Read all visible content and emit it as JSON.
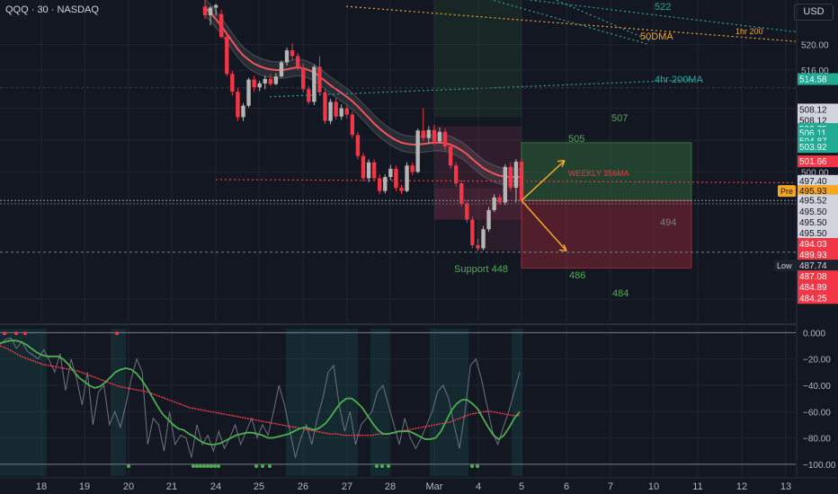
{
  "header": {
    "symbol": "QQQ · 30 · NASDAQ",
    "currency": "USD"
  },
  "colors": {
    "background": "#131722",
    "grid": "#1f2430",
    "axis_text": "#b2b5be",
    "bull": "#b5b5b5",
    "bear": "#f23645",
    "ema_band": "#f0555d",
    "green": "#4caf50",
    "red": "#f23645",
    "orange": "#f5a623",
    "teal_dotted": "#26a69a",
    "support_dotted": "#787b86",
    "zero_line": "#787b86"
  },
  "chart_data": [
    {
      "type": "line",
      "title": "",
      "x_ticks": [
        "18",
        "19",
        "20",
        "21",
        "24",
        "25",
        "26",
        "27",
        "28",
        "Mar",
        "4",
        "5",
        "6",
        "7",
        "10",
        "11",
        "12",
        "13"
      ],
      "price_ticks": [
        520.0,
        516.0,
        500.0,
        480.0
      ],
      "ylim": [
        476.5,
        527
      ],
      "price_labels": [
        {
          "text": "514.58",
          "y": 514.58,
          "bg": "#22ab94",
          "fg": "#ffffff"
        },
        {
          "text": "508.12",
          "y": 509.8,
          "bg": "#d1d4dc",
          "fg": "#131722"
        },
        {
          "text": "508.12",
          "y": 508.12,
          "bg": "#d1d4dc",
          "fg": "#131722"
        },
        {
          "text": "506.75",
          "y": 506.75,
          "bg": "#22ab94",
          "fg": "#ffffff"
        },
        {
          "text": "506.11",
          "y": 506.11,
          "bg": "#22ab94",
          "fg": "#ffffff"
        },
        {
          "text": "504.87",
          "y": 504.87,
          "bg": "#22ab94",
          "fg": "#ffffff"
        },
        {
          "text": "503.92",
          "y": 503.92,
          "bg": "#22ab94",
          "fg": "#ffffff"
        },
        {
          "text": "501.66",
          "y": 501.66,
          "bg": "#f23645",
          "fg": "#ffffff"
        },
        {
          "text": "497.40",
          "y": 498.6,
          "bg": "#d1d4dc",
          "fg": "#131722"
        },
        {
          "text": "495.93",
          "y": 497.0,
          "bg": "#f5a623",
          "fg": "#131722",
          "prefix": "Pre"
        },
        {
          "text": "495.52",
          "y": 495.52,
          "bg": "#d1d4dc",
          "fg": "#131722"
        },
        {
          "text": "495.50",
          "y": 493.8,
          "bg": "#d1d4dc",
          "fg": "#131722"
        },
        {
          "text": "495.50",
          "y": 492.1,
          "bg": "#d1d4dc",
          "fg": "#131722"
        },
        {
          "text": "495.50",
          "y": 490.4,
          "bg": "#d1d4dc",
          "fg": "#131722"
        },
        {
          "text": "494.03",
          "y": 488.7,
          "bg": "#f23645",
          "fg": "#ffffff"
        },
        {
          "text": "489.93",
          "y": 487.0,
          "bg": "#f23645",
          "fg": "#ffffff"
        },
        {
          "text": "487.74",
          "y": 485.3,
          "bg": "#1e222d",
          "fg": "#d1d4dc",
          "prefix": "Low"
        },
        {
          "text": "487.08",
          "y": 483.6,
          "bg": "#f23645",
          "fg": "#ffffff"
        },
        {
          "text": "484.89",
          "y": 481.9,
          "bg": "#f23645",
          "fg": "#ffffff"
        },
        {
          "text": "484.25",
          "y": 480.2,
          "bg": "#f23645",
          "fg": "#ffffff"
        }
      ],
      "candles": [
        [
          526.0,
          527.0,
          524.0,
          524.6
        ],
        [
          524.6,
          526.0,
          523.0,
          525.8
        ],
        [
          525.8,
          526.4,
          524.5,
          526.2
        ],
        [
          524.8,
          525.5,
          521.0,
          521.2
        ],
        [
          521.2,
          521.8,
          515.0,
          515.4
        ],
        [
          515.4,
          515.9,
          512.0,
          512.6
        ],
        [
          512.6,
          513.2,
          508.0,
          508.6
        ],
        [
          508.6,
          510.8,
          508.0,
          510.4
        ],
        [
          510.4,
          514.8,
          510.1,
          514.5
        ],
        [
          514.5,
          515.1,
          512.6,
          513.3
        ],
        [
          513.3,
          514.3,
          512.7,
          513.9
        ],
        [
          513.9,
          515.1,
          513.0,
          514.6
        ],
        [
          514.6,
          515.4,
          513.5,
          513.8
        ],
        [
          513.8,
          515.5,
          513.6,
          515.0
        ],
        [
          515.0,
          517.5,
          514.8,
          517.2
        ],
        [
          517.2,
          519.5,
          516.7,
          519.1
        ],
        [
          519.1,
          520.2,
          517.5,
          518.2
        ],
        [
          518.2,
          518.7,
          516.0,
          516.4
        ],
        [
          516.4,
          517.0,
          512.5,
          513.0
        ],
        [
          513.0,
          513.5,
          510.6,
          511.0
        ],
        [
          511.0,
          516.8,
          510.5,
          516.5
        ],
        [
          516.5,
          518.2,
          512.0,
          512.5
        ],
        [
          512.5,
          513.0,
          507.5,
          508.0
        ],
        [
          508.0,
          511.5,
          507.5,
          511.0
        ],
        [
          511.0,
          511.6,
          508.2,
          508.7
        ],
        [
          508.7,
          510.6,
          508.2,
          510.0
        ],
        [
          510.0,
          510.6,
          508.4,
          509.0
        ],
        [
          509.0,
          509.5,
          505.3,
          505.8
        ],
        [
          505.8,
          506.3,
          502.0,
          502.5
        ],
        [
          502.5,
          503.0,
          498.5,
          499.0
        ],
        [
          499.0,
          502.0,
          498.4,
          501.5
        ],
        [
          501.5,
          502.0,
          498.5,
          499.0
        ],
        [
          499.0,
          499.6,
          496.5,
          497.0
        ],
        [
          497.0,
          499.6,
          496.6,
          499.2
        ],
        [
          499.2,
          501.1,
          498.7,
          500.5
        ],
        [
          500.5,
          501.0,
          497.0,
          497.5
        ],
        [
          497.5,
          498.0,
          496.5,
          497.0
        ],
        [
          497.0,
          501.5,
          496.8,
          501.0
        ],
        [
          501.0,
          501.5,
          499.5,
          500.0
        ],
        [
          500.0,
          506.8,
          499.8,
          506.5
        ],
        [
          506.5,
          510.0,
          504.8,
          505.3
        ],
        [
          505.3,
          507.2,
          504.4,
          506.6
        ],
        [
          506.6,
          507.4,
          504.2,
          504.8
        ],
        [
          504.8,
          507.0,
          504.5,
          506.3
        ],
        [
          506.3,
          506.8,
          503.5,
          504.0
        ],
        [
          504.0,
          504.5,
          500.5,
          501.0
        ],
        [
          501.0,
          501.5,
          497.7,
          498.2
        ],
        [
          498.2,
          498.7,
          494.5,
          495.0
        ],
        [
          495.0,
          495.5,
          492.0,
          492.5
        ],
        [
          492.5,
          493.0,
          488.0,
          488.5
        ],
        [
          488.5,
          489.5,
          487.6,
          488.0
        ],
        [
          488.0,
          491.5,
          487.7,
          491.0
        ],
        [
          491.0,
          494.5,
          490.6,
          494.0
        ],
        [
          494.0,
          496.5,
          493.7,
          496.0
        ],
        [
          496.0,
          496.5,
          494.8,
          495.2
        ],
        [
          495.2,
          501.2,
          494.8,
          500.8
        ],
        [
          500.8,
          501.5,
          497.0,
          497.5
        ],
        [
          497.5,
          502.0,
          495.2,
          501.6
        ],
        [
          501.6,
          502.1,
          495.1,
          495.5
        ]
      ],
      "ema_band": [
        525.8,
        525.0,
        524.0,
        522.9,
        521.7,
        520.5,
        519.3,
        518.3,
        517.6,
        517.0,
        516.6,
        516.3,
        516.1,
        516.0,
        516.0,
        516.1,
        516.3,
        516.4,
        516.3,
        516.0,
        515.6,
        515.0,
        514.3,
        513.6,
        513.0,
        512.4,
        511.8,
        511.1,
        510.3,
        509.4,
        508.5,
        507.6,
        506.8,
        506.1,
        505.5,
        505.0,
        504.6,
        504.4,
        504.3,
        504.3,
        504.4,
        504.5,
        504.6,
        504.6,
        504.5,
        504.3,
        503.9,
        503.4,
        502.8,
        502.0,
        501.3,
        500.6,
        500.1,
        499.7,
        499.4,
        499.3,
        499.2,
        499.2,
        499.2
      ],
      "levels": [
        {
          "label": "522",
          "value": 522,
          "color": "#26a69a"
        },
        {
          "label": "50DMA",
          "value": 519.6,
          "color": "#f5a623"
        },
        {
          "label": "1hr 200",
          "value": 520.8,
          "color": "#f5a623"
        },
        {
          "label": "4hr 200MA",
          "value": 513.3,
          "color": "#26a69a"
        },
        {
          "label": "WEEKLY 356MA",
          "value": 498.1,
          "color": "#f23645"
        },
        {
          "label": "Support 448",
          "value": 488.2,
          "color": "#4caf50"
        },
        {
          "label": "507",
          "value": 503.9,
          "color": "#4caf50"
        },
        {
          "label": "505",
          "value": 501.3,
          "color": "#4caf50"
        },
        {
          "label": "494",
          "value": 494.1,
          "color": "#7f7f7f"
        },
        {
          "label": "486",
          "value": 487.8,
          "color": "#4caf50"
        },
        {
          "label": "484",
          "value": 485.7,
          "color": "#4caf50"
        }
      ]
    },
    {
      "type": "line",
      "title": "",
      "ticks": [
        "0.000",
        "−20.00",
        "−40.00",
        "−60.00",
        "−80.00",
        "−100.00"
      ],
      "tick_values": [
        0,
        -20,
        -40,
        -60,
        -80,
        -100
      ],
      "ylim": [
        -109,
        3
      ],
      "green_oscillator": [
        -8,
        -7,
        -6,
        -6,
        -7,
        -9,
        -12,
        -15,
        -17,
        -18,
        -18,
        -18,
        -20,
        -24,
        -29,
        -34,
        -37,
        -40,
        -42,
        -41,
        -38,
        -34,
        -30,
        -28,
        -27,
        -28,
        -31,
        -36,
        -42,
        -49,
        -56,
        -62,
        -66,
        -70,
        -73,
        -74,
        -77,
        -79,
        -82,
        -84,
        -85,
        -85,
        -84,
        -82,
        -80,
        -78,
        -77,
        -76,
        -76,
        -77,
        -78,
        -80,
        -80,
        -79,
        -78,
        -77,
        -75,
        -73,
        -72,
        -73,
        -74,
        -72,
        -69,
        -64,
        -58,
        -53,
        -50,
        -50,
        -53,
        -57,
        -63,
        -69,
        -74,
        -77,
        -77,
        -76,
        -75,
        -75,
        -75,
        -77,
        -79,
        -81,
        -81,
        -80,
        -75,
        -67,
        -59,
        -54,
        -51,
        -51,
        -54,
        -58,
        -65,
        -72,
        -78,
        -81,
        -78,
        -72,
        -65,
        -60
      ],
      "red_signal": [
        -10,
        -12,
        -15,
        -18,
        -20,
        -22,
        -24,
        -25,
        -26,
        -27,
        -28,
        -29,
        -31,
        -33,
        -35,
        -37,
        -39,
        -41,
        -42,
        -43,
        -44,
        -45,
        -47,
        -49,
        -51,
        -53,
        -55,
        -57,
        -58,
        -59,
        -60,
        -61,
        -62,
        -63,
        -64,
        -65,
        -66,
        -67,
        -68,
        -69,
        -70,
        -71,
        -72,
        -73,
        -74,
        -75,
        -76,
        -77,
        -77,
        -78,
        -78,
        -78,
        -78,
        -78,
        -77,
        -77,
        -76,
        -75,
        -74,
        -73,
        -72,
        -71,
        -70,
        -69,
        -68,
        -66,
        -64,
        -62,
        -61,
        -60,
        -60,
        -61,
        -62,
        -63,
        -63
      ],
      "gray_raw": [
        -9,
        -5,
        -4,
        -12,
        -7,
        -14,
        -17,
        -20,
        -13,
        -21,
        -30,
        -16,
        -44,
        -20,
        -35,
        -55,
        -30,
        -70,
        -45,
        -40,
        -70,
        -60,
        -72,
        -55,
        -35,
        -20,
        -30,
        -85,
        -65,
        -70,
        -90,
        -60,
        -85,
        -78,
        -80,
        -95,
        -70,
        -85,
        -78,
        -90,
        -75,
        -88,
        -80,
        -70,
        -85,
        -75,
        -65,
        -80,
        -70,
        -78,
        -60,
        -40,
        -55,
        -75,
        -95,
        -80,
        -70,
        -85,
        -65,
        -50,
        -30,
        -25,
        -55,
        -75,
        -60,
        -85,
        -70,
        -65,
        -60,
        -45,
        -40,
        -55,
        -70,
        -85,
        -65,
        -80,
        -88,
        -80,
        -70,
        -60,
        -45,
        -40,
        -50,
        -70,
        -88,
        -60,
        -25,
        -20,
        -35,
        -55,
        -75,
        -85,
        -72,
        -60,
        -45,
        -30
      ]
    }
  ]
}
